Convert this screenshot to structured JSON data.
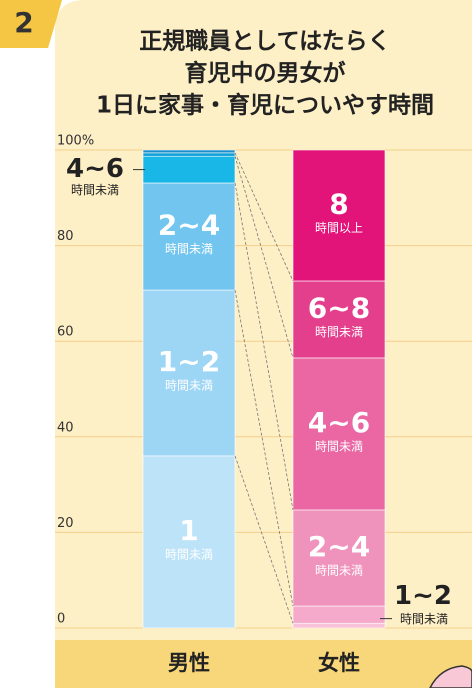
{
  "badge": "2",
  "chart_data": {
    "type": "stacked_bar",
    "title": [
      "正規職員としてはたらく",
      "育児中の男女が",
      "1日に家事・育児についやす時間"
    ],
    "ylim": [
      0,
      100
    ],
    "yticks": [
      0,
      20,
      40,
      60,
      80,
      {
        "value": 100,
        "label": "100%"
      }
    ],
    "grid": true,
    "bars": [
      {
        "category": "男性",
        "segments": [
          {
            "name": "1",
            "unit": "時間未満",
            "value": 36.0,
            "color": "#bde3f8"
          },
          {
            "name": "1~2",
            "unit": "時間未満",
            "value": 34.7,
            "color": "#9dd6f5"
          },
          {
            "name": "2~4",
            "unit": "時間未満",
            "value": 22.4,
            "color": "#72c5ef"
          },
          {
            "name": "4~6",
            "unit": "時間未満",
            "value": 5.6,
            "color": "#19b6e8",
            "label_position": "outside"
          },
          {
            "value": 0.7,
            "color": "#0fa0d8"
          },
          {
            "value": 0.6,
            "color": "#1a8fcc"
          }
        ]
      },
      {
        "category": "女性",
        "segments": [
          {
            "value": 1.0,
            "color": "#f8c2d8"
          },
          {
            "name": "1~2",
            "unit": "時間未満",
            "value": 3.6,
            "color": "#f5aacb",
            "label_position": "outside"
          },
          {
            "name": "2~4",
            "unit": "時間未満",
            "value": 20.1,
            "color": "#ef93bd"
          },
          {
            "name": "4~6",
            "unit": "時間未満",
            "value": 31.8,
            "color": "#ea67a4"
          },
          {
            "name": "6~8",
            "unit": "時間未満",
            "value": 16.1,
            "color": "#e43f8c"
          },
          {
            "name": "8",
            "unit": "時間以上",
            "value": 27.4,
            "color": "#e2147a"
          }
        ]
      }
    ]
  }
}
